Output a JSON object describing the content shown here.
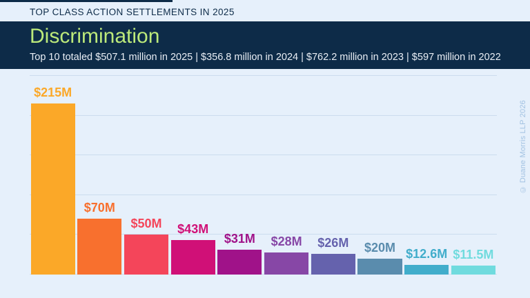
{
  "header": {
    "kicker": "TOP CLASS ACTION SETTLEMENTS IN 2025",
    "title": "Discrimination",
    "subtitle": "Top 10 totaled $507.1 million in 2025 | $356.8 million in 2024 | $762.2 million in 2023 | $597 million in 2022"
  },
  "watermark": {
    "copyright": "© Duane Morris LLP 2026"
  },
  "colors": {
    "page_background": "#e6f0fb",
    "band_background": "#0d2b48",
    "title_green": "#bce97a",
    "kicker_navy": "#0d2b48",
    "subtitle_white": "#e9eef5",
    "gridline": "#cbdcee",
    "copyright_blue": "#a2c2e2"
  },
  "chart_data": {
    "type": "bar",
    "title": "Discrimination",
    "subtitle_totals": "Top 10 totaled $507.1 million in 2025 | $356.8 million in 2024 | $762.2 million in 2023 | $597 million in 2022",
    "unit": "USD millions",
    "values": [
      215,
      70,
      50,
      43,
      31,
      28,
      26,
      20,
      12.6,
      11.5
    ],
    "data_labels": [
      "$215M",
      "$70M",
      "$50M",
      "$43M",
      "$31M",
      "$28M",
      "$26M",
      "$20M",
      "$12.6M",
      "$11.5M"
    ],
    "bar_colors": [
      "#fba828",
      "#f8702e",
      "#f4455a",
      "#d01077",
      "#a01289",
      "#8747a6",
      "#6562ad",
      "#5a8cad",
      "#41adcb",
      "#70dbde"
    ],
    "ylim": [
      0,
      250
    ],
    "gridline_step": 50,
    "grid": true,
    "legend": false,
    "xlabel": "",
    "ylabel": ""
  }
}
